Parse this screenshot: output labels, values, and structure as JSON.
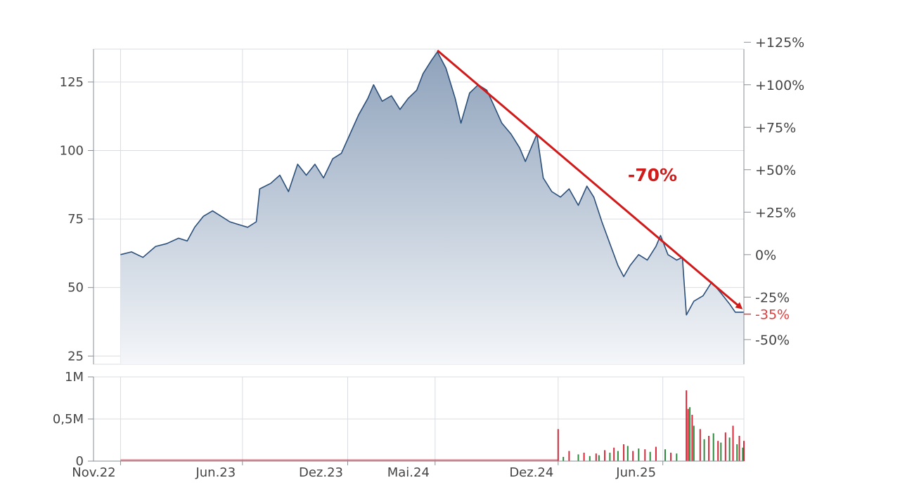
{
  "chart_data": {
    "type": "area",
    "price": {
      "y_ticks": [
        25,
        50,
        75,
        100,
        125
      ],
      "y_range": [
        22,
        137
      ],
      "pct_ticks": [
        "+125%",
        "+100%",
        "+75%",
        "+50%",
        "+25%",
        "0%",
        "-25%",
        "-50%"
      ],
      "pct_values": [
        125,
        100,
        75,
        50,
        25,
        0,
        -25,
        -50
      ],
      "current_pct_label": "-35%",
      "current_pct_value": -35,
      "base_price": 62,
      "x_tick_labels": [
        "Nov.22",
        "Jun.23",
        "Dez.23",
        "Mai.24",
        "Dez.24",
        "Jun.25"
      ],
      "x_tick_dates": [
        "2022-11-01",
        "2023-06-01",
        "2023-12-01",
        "2024-05-01",
        "2024-12-01",
        "2025-06-01"
      ],
      "x_range": [
        "2022-09-15",
        "2025-10-20"
      ],
      "series": [
        {
          "points": [
            [
              "2022-11-01",
              62
            ],
            [
              "2022-11-20",
              63
            ],
            [
              "2022-12-10",
              61
            ],
            [
              "2023-01-01",
              65
            ],
            [
              "2023-01-20",
              66
            ],
            [
              "2023-02-10",
              68
            ],
            [
              "2023-02-25",
              67
            ],
            [
              "2023-03-10",
              72
            ],
            [
              "2023-03-25",
              76
            ],
            [
              "2023-04-10",
              78
            ],
            [
              "2023-04-25",
              76
            ],
            [
              "2023-05-10",
              74
            ],
            [
              "2023-05-25",
              73
            ],
            [
              "2023-06-10",
              72
            ],
            [
              "2023-06-25",
              74
            ],
            [
              "2023-07-01",
              86
            ],
            [
              "2023-07-20",
              88
            ],
            [
              "2023-08-05",
              91
            ],
            [
              "2023-08-20",
              85
            ],
            [
              "2023-09-05",
              95
            ],
            [
              "2023-09-20",
              91
            ],
            [
              "2023-10-05",
              95
            ],
            [
              "2023-10-20",
              90
            ],
            [
              "2023-11-05",
              97
            ],
            [
              "2023-11-20",
              99
            ],
            [
              "2023-12-05",
              106
            ],
            [
              "2023-12-20",
              113
            ],
            [
              "2024-01-05",
              119
            ],
            [
              "2024-01-15",
              124
            ],
            [
              "2024-01-30",
              118
            ],
            [
              "2024-02-15",
              120
            ],
            [
              "2024-03-01",
              115
            ],
            [
              "2024-03-15",
              119
            ],
            [
              "2024-03-30",
              122
            ],
            [
              "2024-04-10",
              128
            ],
            [
              "2024-04-25",
              133
            ],
            [
              "2024-05-05",
              136
            ],
            [
              "2024-05-20",
              130
            ],
            [
              "2024-06-05",
              119
            ],
            [
              "2024-06-15",
              110
            ],
            [
              "2024-06-30",
              121
            ],
            [
              "2024-07-15",
              124
            ],
            [
              "2024-07-30",
              122
            ],
            [
              "2024-08-10",
              117
            ],
            [
              "2024-08-25",
              110
            ],
            [
              "2024-09-10",
              106
            ],
            [
              "2024-09-25",
              101
            ],
            [
              "2024-10-05",
              96
            ],
            [
              "2024-10-15",
              101
            ],
            [
              "2024-10-25",
              106
            ],
            [
              "2024-11-05",
              90
            ],
            [
              "2024-11-20",
              85
            ],
            [
              "2024-12-05",
              83
            ],
            [
              "2024-12-20",
              86
            ],
            [
              "2025-01-05",
              80
            ],
            [
              "2025-01-20",
              87
            ],
            [
              "2025-02-01",
              83
            ],
            [
              "2025-02-15",
              74
            ],
            [
              "2025-03-01",
              66
            ],
            [
              "2025-03-15",
              58
            ],
            [
              "2025-03-25",
              54
            ],
            [
              "2025-04-05",
              58
            ],
            [
              "2025-04-20",
              62
            ],
            [
              "2025-05-05",
              60
            ],
            [
              "2025-05-20",
              65
            ],
            [
              "2025-05-28",
              69
            ],
            [
              "2025-06-10",
              62
            ],
            [
              "2025-06-25",
              60
            ],
            [
              "2025-07-05",
              61
            ],
            [
              "2025-07-12",
              40
            ],
            [
              "2025-07-25",
              45
            ],
            [
              "2025-08-10",
              47
            ],
            [
              "2025-08-25",
              52
            ],
            [
              "2025-09-10",
              48
            ],
            [
              "2025-09-25",
              44
            ],
            [
              "2025-10-05",
              41
            ],
            [
              "2025-10-20",
              41
            ]
          ]
        }
      ]
    },
    "volume": {
      "y_ticks": [
        0,
        0.5,
        1
      ],
      "y_tick_labels": [
        "0",
        "0,5M",
        "1M"
      ],
      "y_range": [
        0,
        1
      ],
      "bars_up": [
        [
          "2024-12-10",
          0.05
        ],
        [
          "2025-01-05",
          0.08
        ],
        [
          "2025-01-25",
          0.06
        ],
        [
          "2025-02-10",
          0.07
        ],
        [
          "2025-03-01",
          0.1
        ],
        [
          "2025-03-15",
          0.12
        ],
        [
          "2025-04-01",
          0.18
        ],
        [
          "2025-04-20",
          0.15
        ],
        [
          "2025-05-10",
          0.11
        ],
        [
          "2025-06-05",
          0.14
        ],
        [
          "2025-06-25",
          0.09
        ],
        [
          "2025-07-18",
          0.64
        ],
        [
          "2025-07-25",
          0.42
        ],
        [
          "2025-08-12",
          0.26
        ],
        [
          "2025-08-28",
          0.33
        ],
        [
          "2025-09-10",
          0.22
        ],
        [
          "2025-09-25",
          0.28
        ],
        [
          "2025-10-08",
          0.2
        ],
        [
          "2025-10-18",
          0.16
        ]
      ],
      "bars_down": [
        [
          "2024-12-01",
          0.38
        ],
        [
          "2024-12-20",
          0.12
        ],
        [
          "2025-01-15",
          0.1
        ],
        [
          "2025-02-05",
          0.09
        ],
        [
          "2025-02-20",
          0.13
        ],
        [
          "2025-03-08",
          0.16
        ],
        [
          "2025-03-25",
          0.2
        ],
        [
          "2025-04-10",
          0.12
        ],
        [
          "2025-05-01",
          0.14
        ],
        [
          "2025-05-20",
          0.17
        ],
        [
          "2025-06-15",
          0.1
        ],
        [
          "2025-07-12",
          0.84
        ],
        [
          "2025-07-15",
          0.62
        ],
        [
          "2025-07-22",
          0.55
        ],
        [
          "2025-08-05",
          0.38
        ],
        [
          "2025-08-20",
          0.3
        ],
        [
          "2025-09-05",
          0.24
        ],
        [
          "2025-09-18",
          0.34
        ],
        [
          "2025-10-01",
          0.42
        ],
        [
          "2025-10-12",
          0.3
        ],
        [
          "2025-10-20",
          0.24
        ]
      ]
    },
    "annotation": {
      "text": "-70%",
      "trend_from": [
        "2024-05-05",
        136
      ],
      "trend_to": [
        "2025-10-20",
        41
      ]
    },
    "colors": {
      "line": "#2b4f7a",
      "area_top": "#8ea2bb",
      "area_bottom": "#f4f6f9",
      "grid": "#d9dde2",
      "axis": "#8a8f96",
      "vol_up": "#2e8b3e",
      "vol_down": "#d62839",
      "trend": "#d11a1a",
      "current_label": "#e03c3c"
    },
    "grid": true
  }
}
